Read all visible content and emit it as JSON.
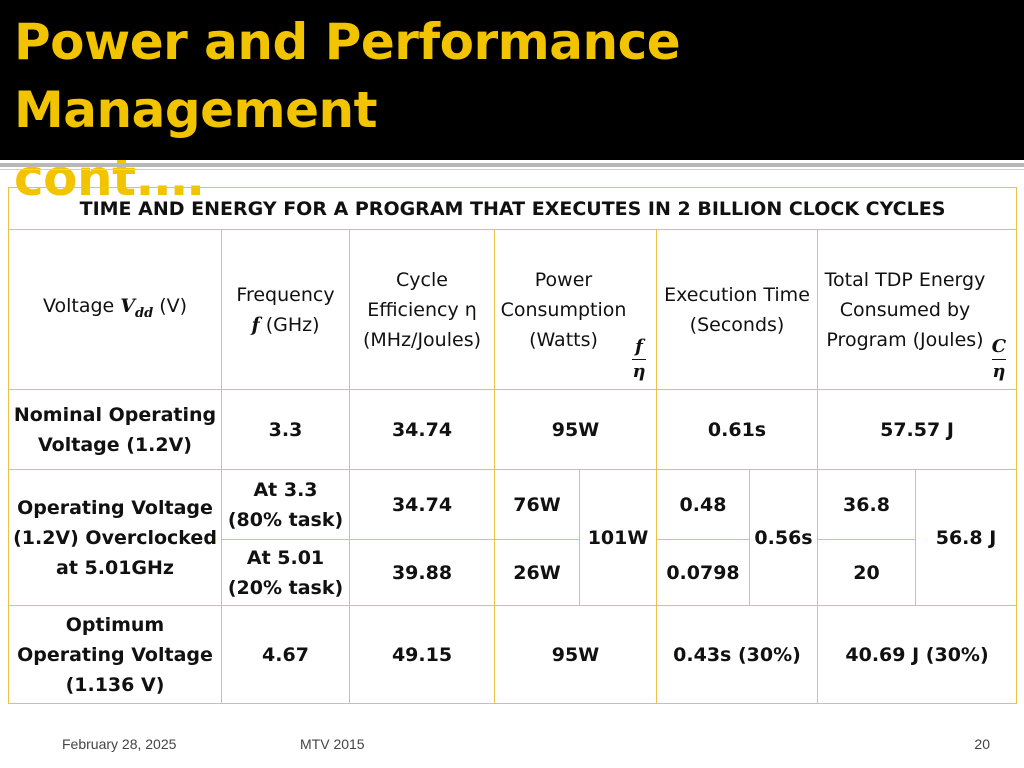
{
  "slide": {
    "title": "Power and Performance  Management\ncont.…"
  },
  "table": {
    "caption": "TIME AND ENERGY FOR A PROGRAM THAT EXECUTES IN 2 BILLION CLOCK CYCLES",
    "headers": {
      "voltage_prefix": "Voltage ",
      "voltage_symbol": "V",
      "voltage_sub": "dd",
      "voltage_suffix": " (V)",
      "frequency_line1": "Frequency",
      "frequency_symbol": "f",
      "frequency_unit": " (GHz)",
      "cycle_eff": "Cycle Efficiency η (MHz/Joules)",
      "power": "Power Consumption (Watts)",
      "power_frac_num": "f",
      "power_frac_den": "η",
      "exec_time": "Execution Time (Seconds)",
      "energy": "Total TDP Energy Consumed by Program (Joules)",
      "energy_frac_num": "C",
      "energy_frac_den": "η"
    },
    "rows": {
      "nominal": {
        "label": "Nominal Operating Voltage (1.2V)",
        "frequency": "3.3",
        "efficiency": "34.74",
        "power": "95W",
        "time": "0.61s",
        "energy": "57.57 J"
      },
      "overclocked": {
        "label": "Operating Voltage (1.2V) Overclocked at 5.01GHz",
        "sub1": {
          "frequency": "At 3.3 (80% task)",
          "efficiency": "34.74",
          "power": "76W",
          "time": "0.48",
          "energy": "36.8"
        },
        "sub2": {
          "frequency": "At 5.01 (20% task)",
          "efficiency": "39.88",
          "power": "26W",
          "time": "0.0798",
          "energy": "20"
        },
        "power_total": "101W",
        "time_total": "0.56s",
        "energy_total": "56.8 J"
      },
      "optimum": {
        "label": "Optimum Operating Voltage (1.136 V)",
        "frequency": "4.67",
        "efficiency": "49.15",
        "power": "95W",
        "time": "0.43s (30%)",
        "energy": "40.69 J (30%)"
      }
    }
  },
  "footer": {
    "date": "February 28, 2025",
    "center": "MTV 2015",
    "page": "20"
  }
}
